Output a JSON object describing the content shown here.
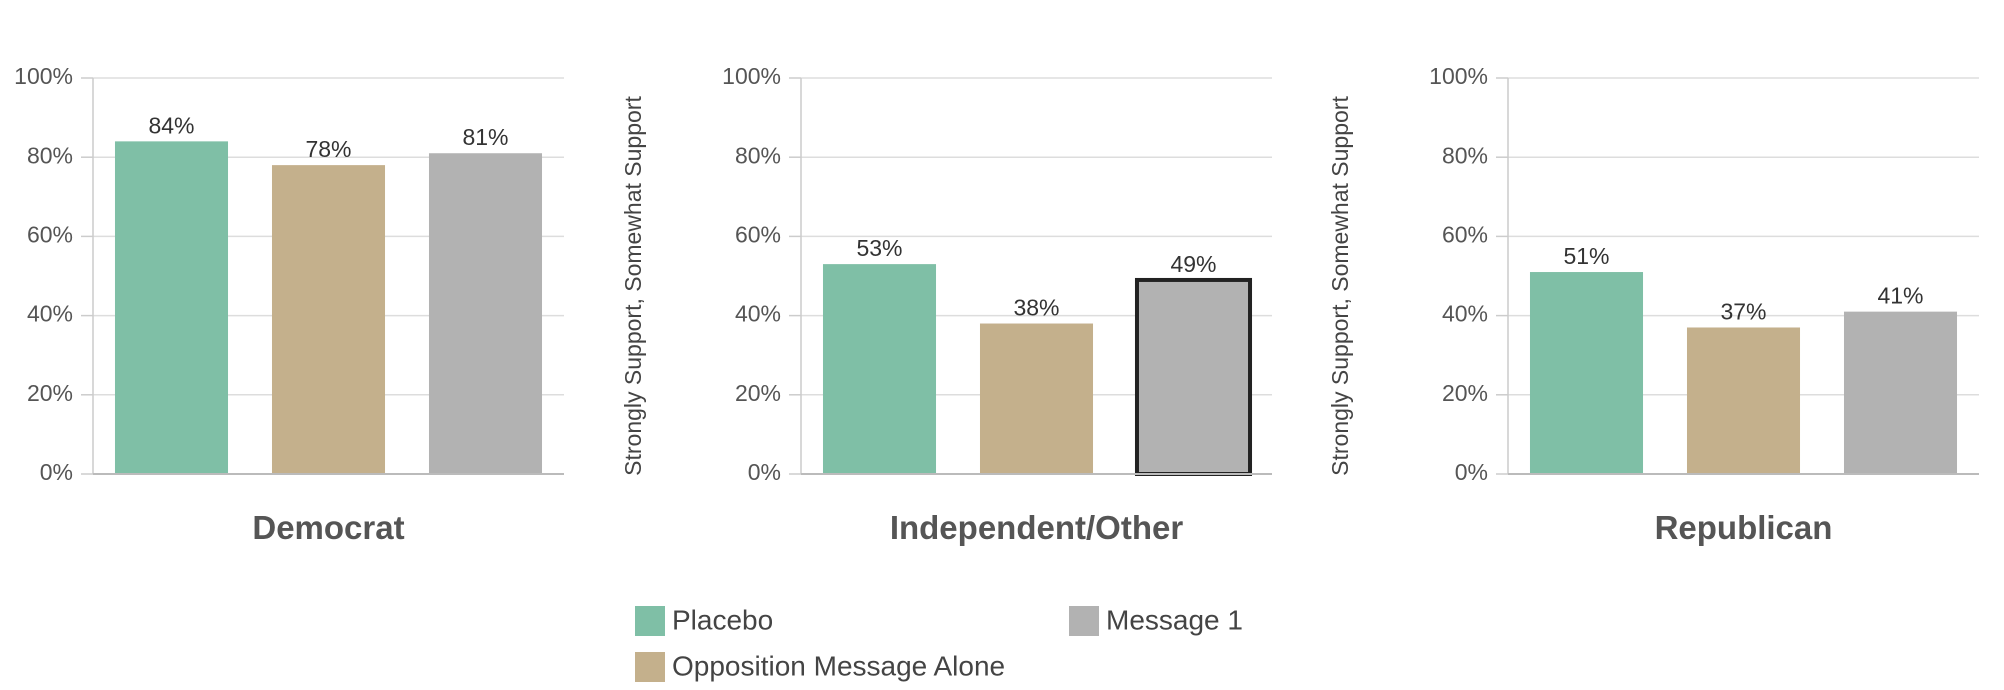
{
  "chart_data": [
    {
      "type": "bar",
      "title": "Democrat",
      "series": [
        {
          "name": "Placebo",
          "color": "#7fbfa6",
          "values": [
            84
          ],
          "value_labels": [
            "84%"
          ]
        },
        {
          "name": "Opposition Message Alone",
          "color": "#c4b08c",
          "values": [
            78
          ],
          "value_labels": [
            "78%"
          ]
        },
        {
          "name": "Message 1",
          "color": "#b2b2b2",
          "values": [
            81
          ],
          "value_labels": [
            "81%"
          ]
        }
      ],
      "ylim": [
        0,
        100
      ],
      "yticks": [
        {
          "value": 0,
          "label": "0%"
        },
        {
          "value": 20,
          "label": "20%"
        },
        {
          "value": 40,
          "label": "40%"
        },
        {
          "value": 60,
          "label": "60%"
        },
        {
          "value": 80,
          "label": "80%"
        },
        {
          "value": 100,
          "label": "100%"
        }
      ],
      "grid": true
    },
    {
      "type": "bar",
      "title": "Independent/Other",
      "ylabel": "Strongly Support, Somewhat Support",
      "series": [
        {
          "name": "Placebo",
          "color": "#7fbfa6",
          "values": [
            53
          ],
          "value_labels": [
            "53%"
          ]
        },
        {
          "name": "Opposition Message Alone",
          "color": "#c4b08c",
          "values": [
            38
          ],
          "value_labels": [
            "38%"
          ]
        },
        {
          "name": "Message 1",
          "color": "#b2b2b2",
          "values": [
            49
          ],
          "value_labels": [
            "49%"
          ],
          "outline": "#222222"
        }
      ],
      "ylim": [
        0,
        100
      ],
      "yticks": [
        {
          "value": 0,
          "label": "0%"
        },
        {
          "value": 20,
          "label": "20%"
        },
        {
          "value": 40,
          "label": "40%"
        },
        {
          "value": 60,
          "label": "60%"
        },
        {
          "value": 80,
          "label": "80%"
        },
        {
          "value": 100,
          "label": "100%"
        }
      ],
      "grid": true
    },
    {
      "type": "bar",
      "title": "Republican",
      "ylabel": "Strongly Support, Somewhat Support",
      "series": [
        {
          "name": "Placebo",
          "color": "#7fbfa6",
          "values": [
            51
          ],
          "value_labels": [
            "51%"
          ]
        },
        {
          "name": "Opposition Message Alone",
          "color": "#c4b08c",
          "values": [
            37
          ],
          "value_labels": [
            "37%"
          ]
        },
        {
          "name": "Message 1",
          "color": "#b2b2b2",
          "values": [
            41
          ],
          "value_labels": [
            "41%"
          ]
        }
      ],
      "ylim": [
        0,
        100
      ],
      "yticks": [
        {
          "value": 0,
          "label": "0%"
        },
        {
          "value": 20,
          "label": "20%"
        },
        {
          "value": 40,
          "label": "40%"
        },
        {
          "value": 60,
          "label": "60%"
        },
        {
          "value": 80,
          "label": "80%"
        },
        {
          "value": 100,
          "label": "100%"
        }
      ],
      "grid": true
    }
  ]
}
